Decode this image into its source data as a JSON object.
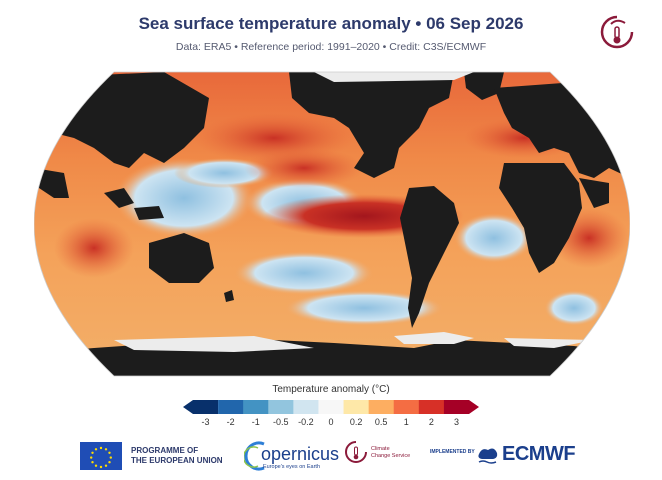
{
  "header": {
    "title": "Sea surface temperature anomaly • 06 Sep 2026",
    "subtitle": "Data: ERA5 • Reference period: 1991–2020 • Credit: C3S/ECMWF"
  },
  "map": {
    "projection": "Robinson-like world map",
    "land_color": "#1c1c1c",
    "sea_ice_color": "#f0f0f0",
    "ocean_color_scale": "blue-white-red anomaly"
  },
  "legend": {
    "title": "Temperature anomaly (°C)",
    "ticks": [
      "-3",
      "-2",
      "-1",
      "-0.5",
      "-0.2",
      "0",
      "0.2",
      "0.5",
      "1",
      "2",
      "3"
    ],
    "colors": [
      "#08306b",
      "#2166ac",
      "#4393c3",
      "#92c5de",
      "#d1e5f0",
      "#f7f7f7",
      "#fee8a8",
      "#fdae61",
      "#f46d43",
      "#d73027",
      "#a50026"
    ]
  },
  "footer": {
    "eu_line1": "PROGRAMME OF",
    "eu_line2": "THE EUROPEAN UNION",
    "copernicus": "opernicus",
    "copernicus_sub": "Europe's eyes on Earth",
    "c3s_line1": "Climate",
    "c3s_line2": "Change Service",
    "implemented": "IMPLEMENTED BY",
    "ecmwf": "ECMWF"
  }
}
